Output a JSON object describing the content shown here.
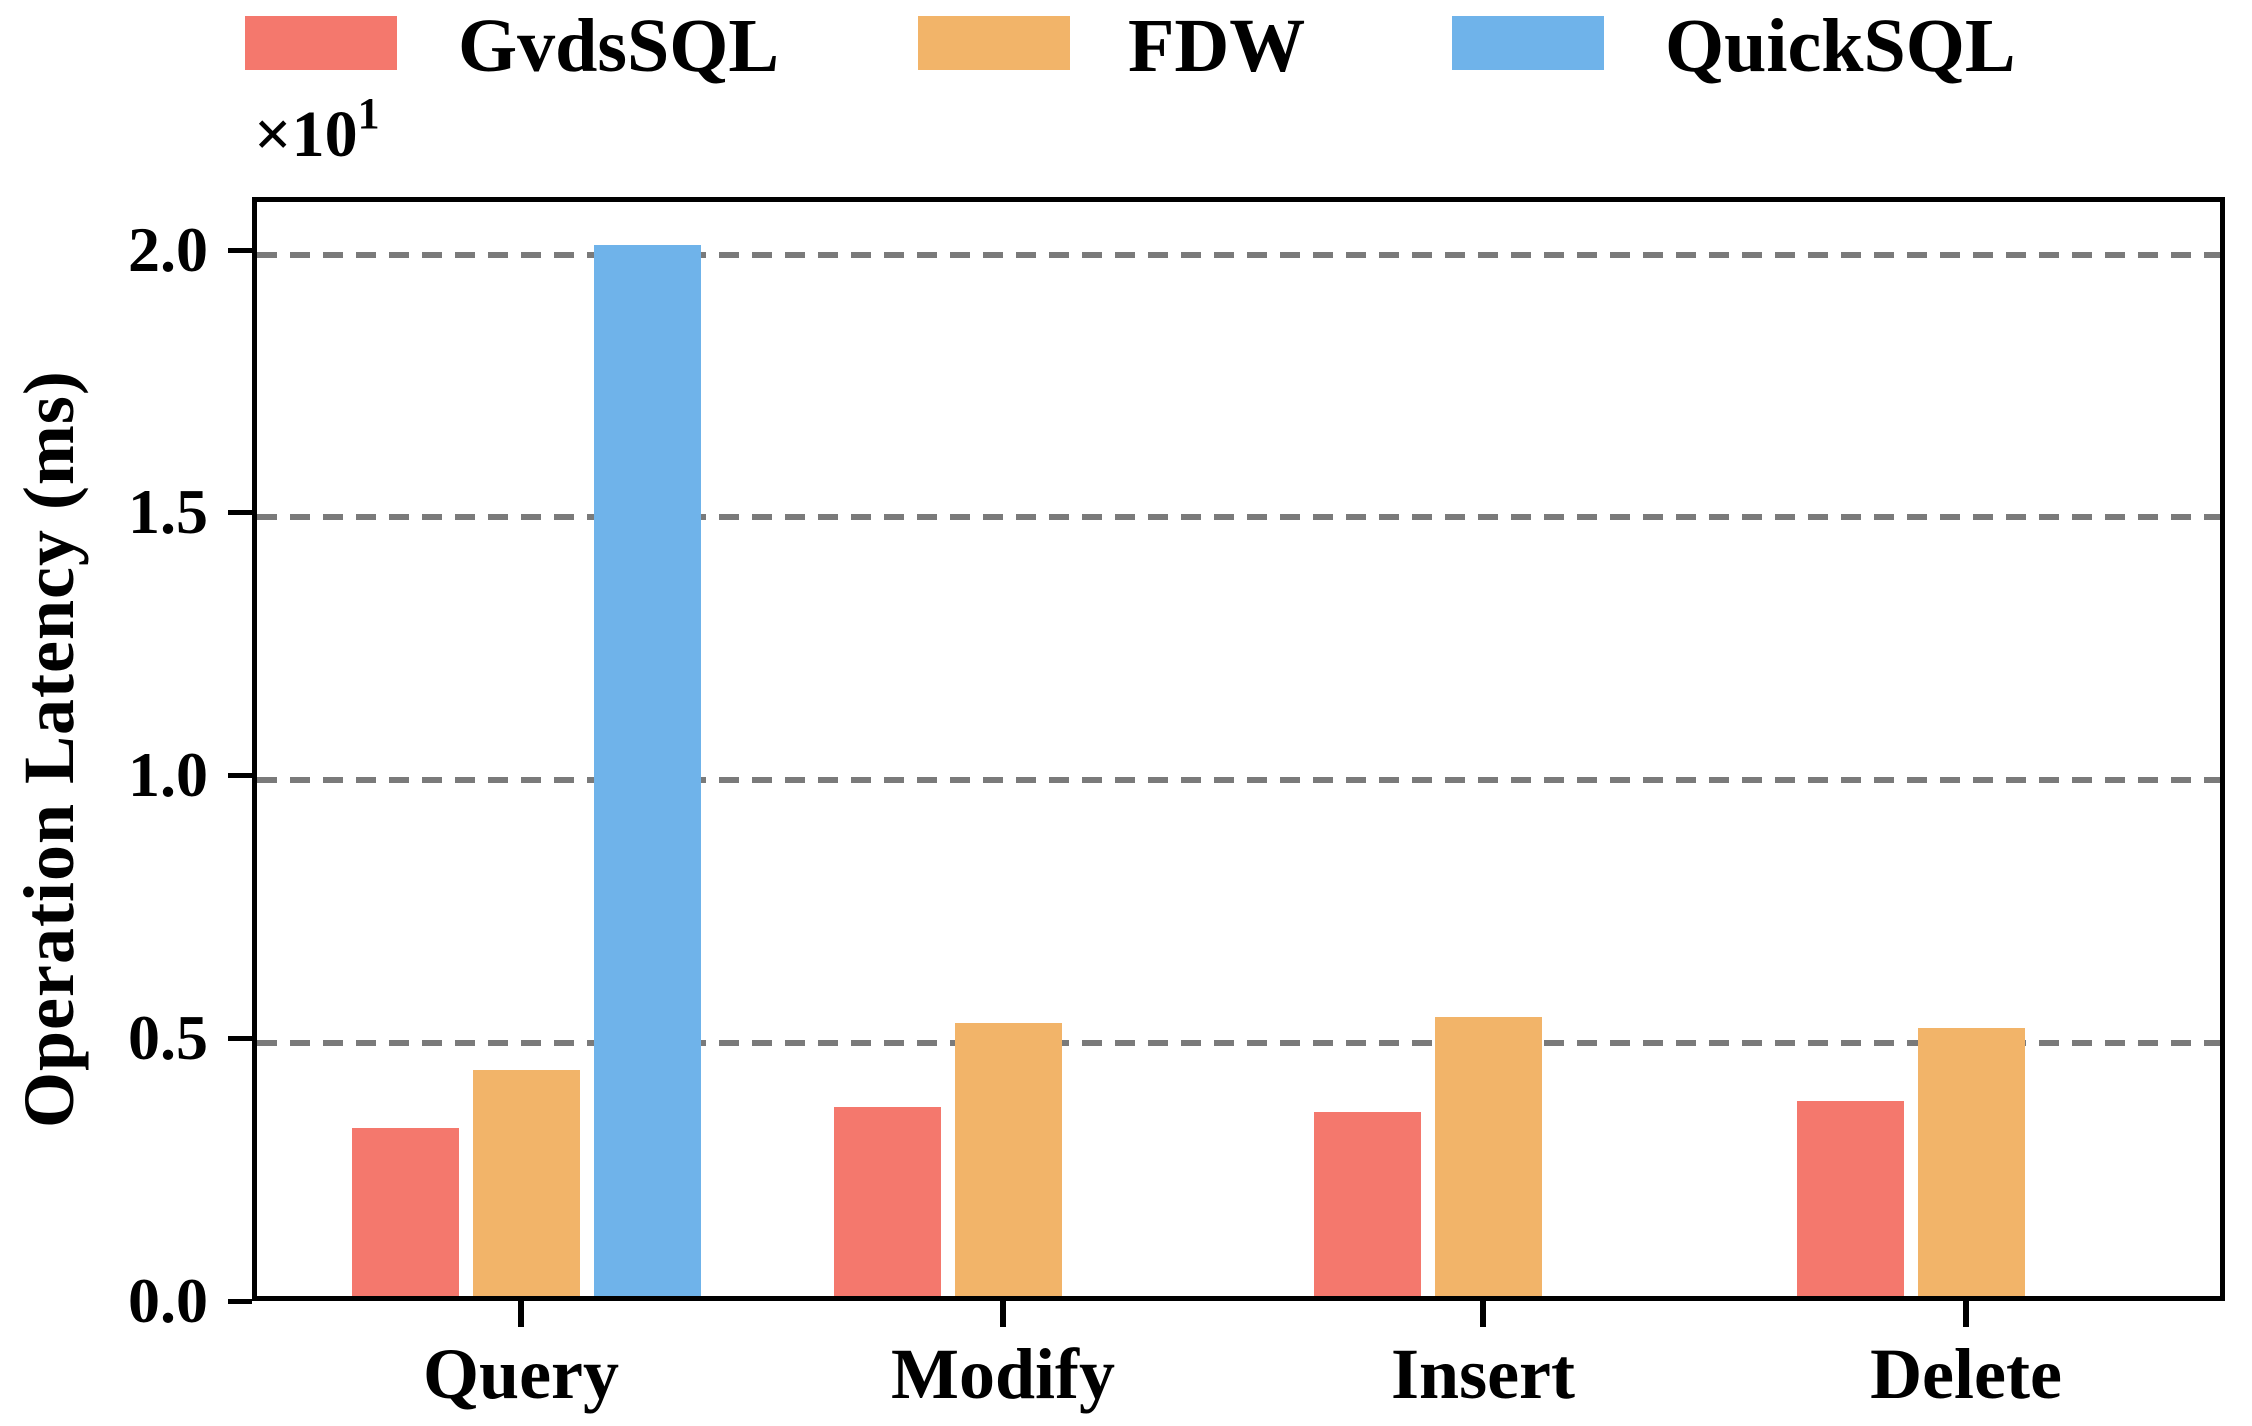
{
  "figure": {
    "background": "#ffffff",
    "text_color": "#000000",
    "spine_color": "#000000"
  },
  "chart_data": {
    "type": "bar",
    "title": "",
    "categories": [
      "Query",
      "Modify",
      "Insert",
      "Delete"
    ],
    "series": [
      {
        "name": "GvdsSQL",
        "color": "#F4786D",
        "values_ms": [
          3.2,
          3.6,
          3.5,
          3.7
        ]
      },
      {
        "name": "FDW",
        "color": "#F2B469",
        "values_ms": [
          4.3,
          5.2,
          5.3,
          5.1
        ]
      },
      {
        "name": "QuickSQL",
        "color": "#6FB3EA",
        "values_ms": [
          20.0,
          0,
          0,
          0
        ]
      }
    ],
    "xlabel": "",
    "ylabel": "Operation Latency (ms)",
    "y_offset_text": "×10",
    "y_offset_exponent": "1",
    "y_tick_labels": [
      "0.0",
      "0.5",
      "1.0",
      "1.5",
      "2.0"
    ],
    "y_tick_values_ms": [
      0,
      5,
      10,
      15,
      20
    ],
    "ylim_ms": [
      0,
      21
    ],
    "grid": {
      "axis": "y",
      "style": "dashed",
      "color": "#7A7A7A"
    },
    "legend_position": "top",
    "legend_frame": false
  }
}
